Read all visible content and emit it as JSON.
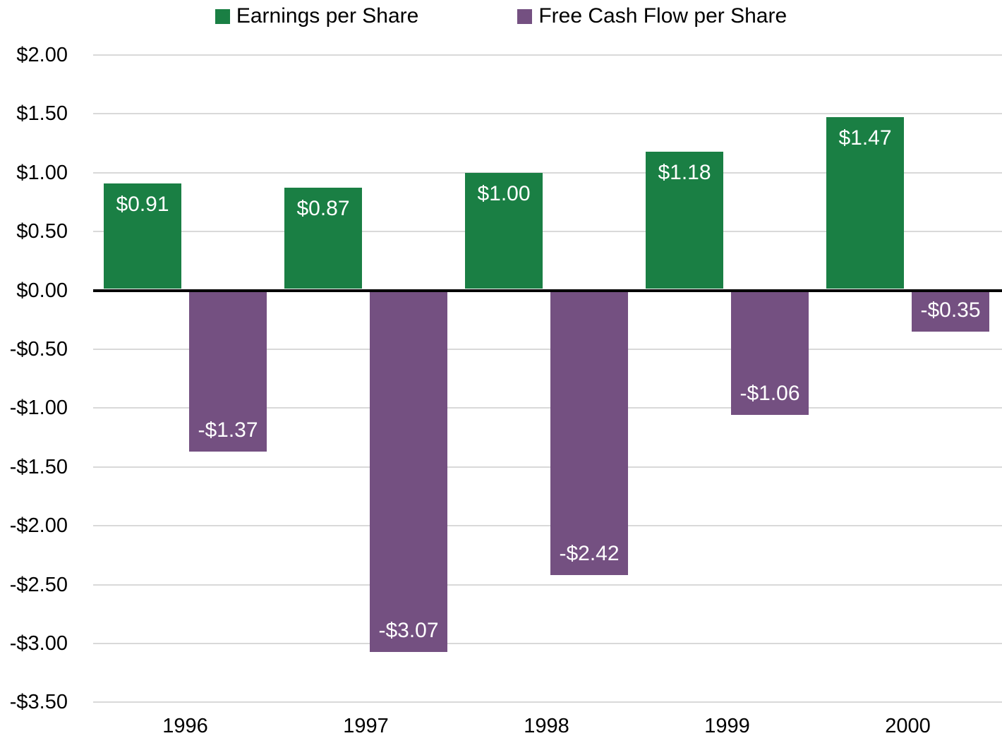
{
  "chart_data": {
    "type": "bar",
    "title": "",
    "categories": [
      "1996",
      "1997",
      "1998",
      "1999",
      "2000"
    ],
    "series": [
      {
        "name": "Earnings per Share",
        "color": "#1a7f44",
        "values": [
          0.91,
          0.87,
          1.0,
          1.18,
          1.47
        ],
        "labels": [
          "$0.91",
          "$0.87",
          "$1.00",
          "$1.18",
          "$1.47"
        ]
      },
      {
        "name": "Free Cash Flow per Share",
        "color": "#745081",
        "values": [
          -1.37,
          -3.07,
          -2.42,
          -1.06,
          -0.35
        ],
        "labels": [
          "-$1.37",
          "-$3.07",
          "-$2.42",
          "-$1.06",
          "-$0.35"
        ]
      }
    ],
    "y_axis": {
      "min": -3.5,
      "max": 2.0,
      "step": 0.5,
      "ticks": [
        {
          "value": 2.0,
          "label": "$2.00"
        },
        {
          "value": 1.5,
          "label": "$1.50"
        },
        {
          "value": 1.0,
          "label": "$1.00"
        },
        {
          "value": 0.5,
          "label": "$0.50"
        },
        {
          "value": 0.0,
          "label": "$0.00"
        },
        {
          "value": -0.5,
          "label": "-$0.50"
        },
        {
          "value": -1.0,
          "label": "-$1.00"
        },
        {
          "value": -1.5,
          "label": "-$1.50"
        },
        {
          "value": -2.0,
          "label": "-$2.00"
        },
        {
          "value": -2.5,
          "label": "-$2.50"
        },
        {
          "value": -3.0,
          "label": "-$3.00"
        },
        {
          "value": -3.5,
          "label": "-$3.50"
        }
      ]
    },
    "legend": {
      "position": "top"
    },
    "grid": true,
    "colors": {
      "grid": "#d9d9d9",
      "axis": "#000000",
      "data_label": "#ffffff",
      "tick_text": "#000000"
    }
  }
}
